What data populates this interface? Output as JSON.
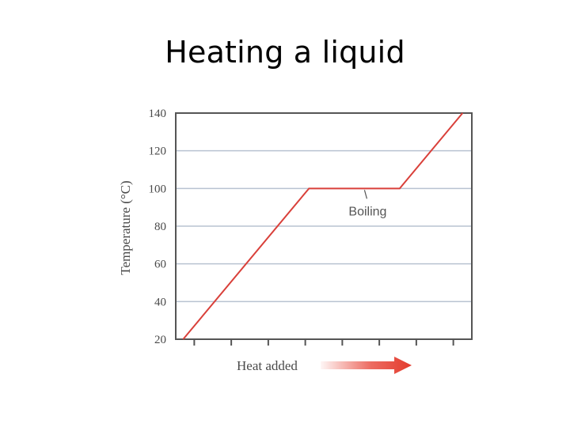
{
  "slide": {
    "title": "Heating a liquid"
  },
  "chart_data": {
    "type": "line",
    "title": "",
    "xlabel": "Heat added",
    "ylabel": "Temperature (°C)",
    "ylim": [
      20,
      140
    ],
    "yticks": [
      20,
      40,
      60,
      80,
      100,
      120,
      140
    ],
    "xlim": [
      0,
      8
    ],
    "xticks_labeled": false,
    "grid": true,
    "series": [
      {
        "color": "#d9403a",
        "x": [
          0.2,
          3.6,
          6.05,
          7.75
        ],
        "y": [
          20,
          100,
          100,
          140
        ]
      }
    ],
    "annotations": [
      {
        "text": "Boiling",
        "x": 5.1,
        "y": 100
      }
    ],
    "colors": {
      "line": "#d9403a",
      "grid": "#b9c3d1",
      "frame": "#555555",
      "arrow": "#e8473a"
    }
  }
}
